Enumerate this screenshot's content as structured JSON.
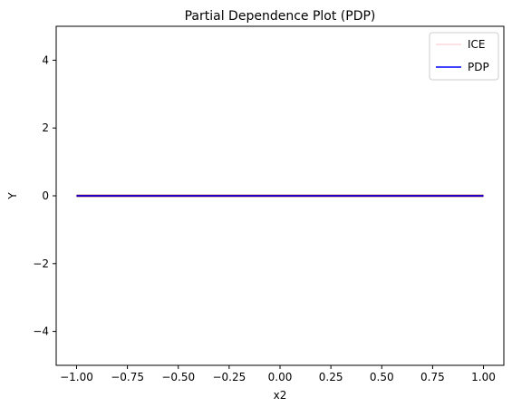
{
  "chart_data": {
    "type": "line",
    "title": "Partial Dependence Plot (PDP)",
    "xlabel": "x2",
    "ylabel": "Y",
    "xlim": [
      -1.1,
      1.1
    ],
    "ylim": [
      -5,
      5
    ],
    "xticks": [
      -1.0,
      -0.75,
      -0.5,
      -0.25,
      0.0,
      0.25,
      0.5,
      0.75,
      1.0
    ],
    "xtick_labels": [
      "−1.00",
      "−0.75",
      "−0.50",
      "−0.25",
      "0.00",
      "0.25",
      "0.50",
      "0.75",
      "1.00"
    ],
    "yticks": [
      -4,
      -2,
      0,
      2,
      4
    ],
    "ytick_labels": [
      "−4",
      "−2",
      "0",
      "2",
      "4"
    ],
    "grid": false,
    "legend": "top-right",
    "series": [
      {
        "name": "ICE",
        "color": "#ffc0cb",
        "x": [
          -1.0,
          1.0
        ],
        "y": [
          0,
          0
        ]
      },
      {
        "name": "PDP",
        "color": "#0000ff",
        "x": [
          -1.0,
          1.0
        ],
        "y": [
          0,
          0
        ]
      }
    ],
    "ice_line_color": "#8b0000"
  }
}
